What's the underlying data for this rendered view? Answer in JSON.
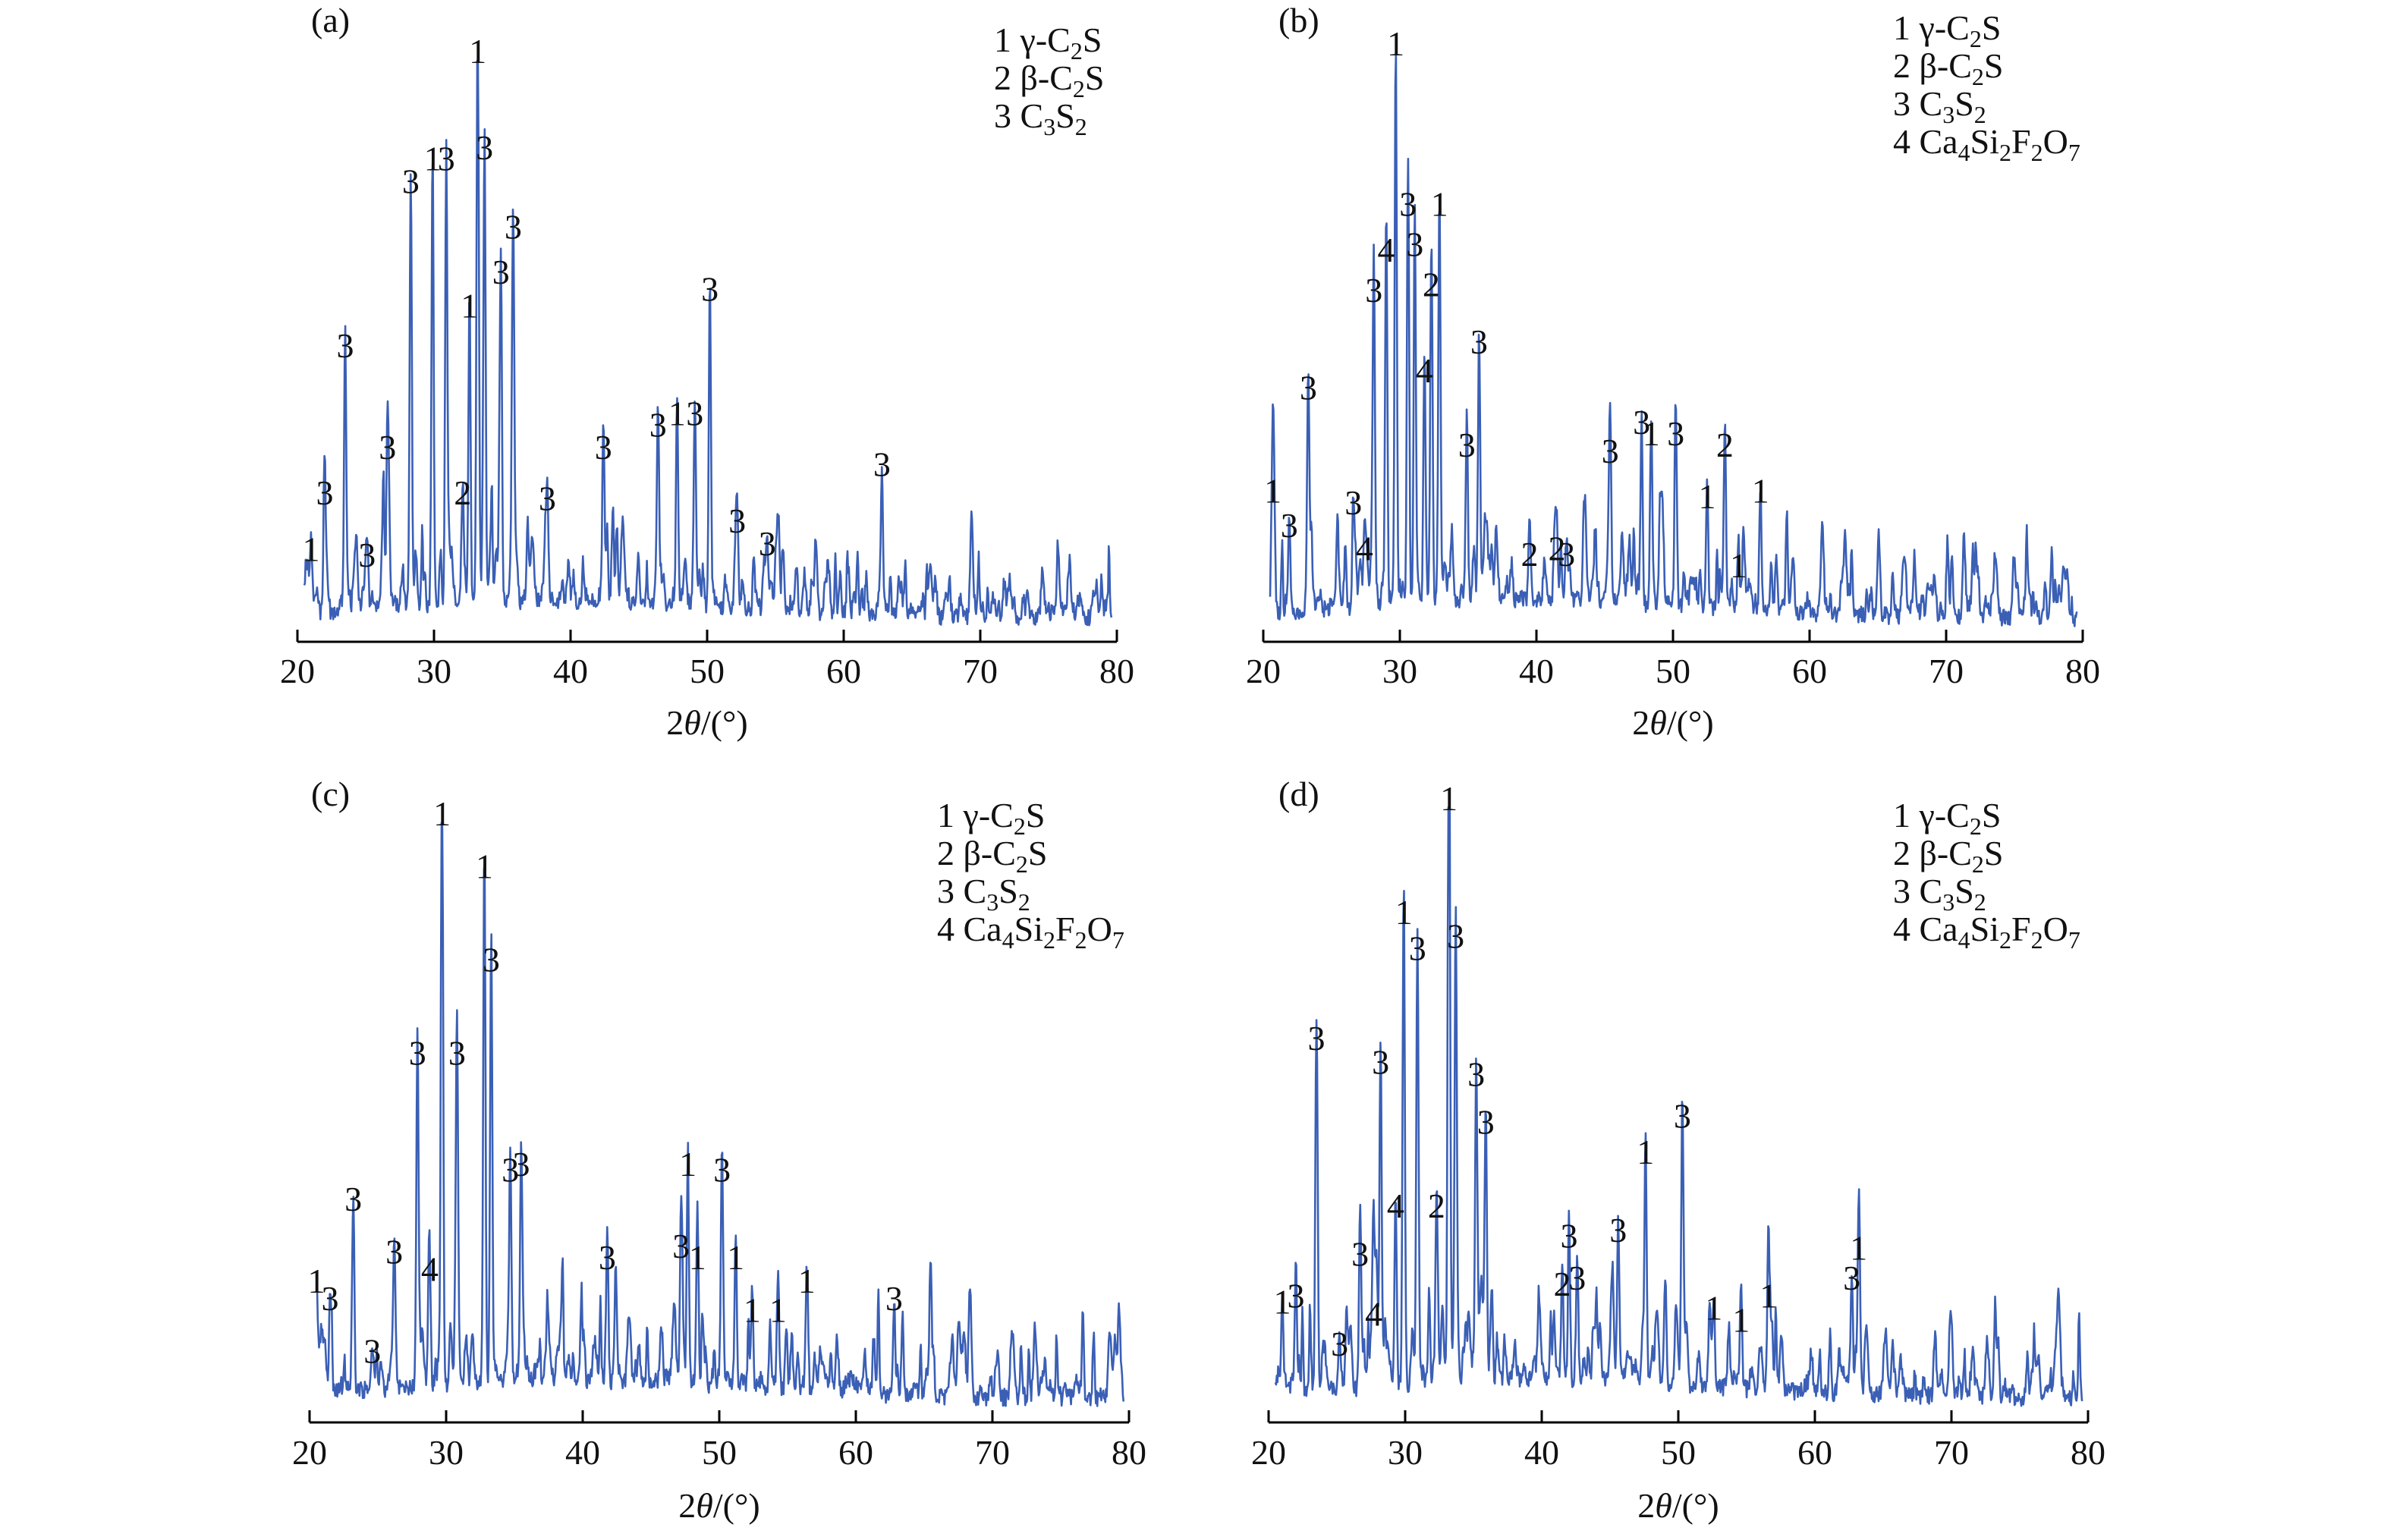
{
  "figure": {
    "trace_color": "#3a5fb5",
    "xlabel_main": "2",
    "xlabel_theta": "θ",
    "xlabel_unit": "/(°)",
    "legend": {
      "phases": [
        {
          "num": "1",
          "prefix": "γ-C",
          "sub": "2",
          "suffix": "S"
        },
        {
          "num": "2",
          "prefix": "β-C",
          "sub": "2",
          "suffix": "S"
        },
        {
          "num": "3",
          "prefix": "C",
          "sub": "3",
          "suffix": "S",
          "sub2": "2"
        },
        {
          "num": "4",
          "prefix": "Ca",
          "sub": "4",
          "suffix": "Si",
          "sub2": "2",
          "suffix2": "F",
          "sub3": "2",
          "suffix3": "O",
          "sub4": "7"
        }
      ]
    }
  },
  "chart_data": [
    {
      "type": "line",
      "panel": "(a)",
      "xlabel": "2θ/(°)",
      "ylabel": "",
      "xlim": [
        20,
        80
      ],
      "ticks": [
        20,
        30,
        40,
        50,
        60,
        70,
        80
      ],
      "legend_items": 3,
      "peaks": [
        {
          "x": 21.0,
          "y": 0.12,
          "label": "1"
        },
        {
          "x": 22.0,
          "y": 0.22,
          "label": "3"
        },
        {
          "x": 23.5,
          "y": 0.48,
          "label": "3"
        },
        {
          "x": 25.1,
          "y": 0.11,
          "label": "3"
        },
        {
          "x": 26.6,
          "y": 0.3,
          "label": "3"
        },
        {
          "x": 28.3,
          "y": 0.77,
          "label": "3"
        },
        {
          "x": 29.9,
          "y": 0.81,
          "label": "1"
        },
        {
          "x": 30.9,
          "y": 0.81,
          "label": "3"
        },
        {
          "x": 32.1,
          "y": 0.22,
          "label": "2"
        },
        {
          "x": 32.6,
          "y": 0.55,
          "label": "1"
        },
        {
          "x": 33.2,
          "y": 1.0,
          "label": "1"
        },
        {
          "x": 33.7,
          "y": 0.83,
          "label": "3"
        },
        {
          "x": 34.9,
          "y": 0.61,
          "label": "3"
        },
        {
          "x": 35.8,
          "y": 0.69,
          "label": "3"
        },
        {
          "x": 38.3,
          "y": 0.21,
          "label": "3"
        },
        {
          "x": 42.4,
          "y": 0.3,
          "label": "3"
        },
        {
          "x": 46.4,
          "y": 0.34,
          "label": "3"
        },
        {
          "x": 47.8,
          "y": 0.36,
          "label": "1"
        },
        {
          "x": 49.1,
          "y": 0.36,
          "label": "3"
        },
        {
          "x": 50.2,
          "y": 0.58,
          "label": "3"
        },
        {
          "x": 52.2,
          "y": 0.17,
          "label": "3"
        },
        {
          "x": 54.4,
          "y": 0.13,
          "label": "3"
        },
        {
          "x": 62.8,
          "y": 0.27,
          "label": "3"
        }
      ]
    },
    {
      "type": "line",
      "panel": "(b)",
      "xlabel": "2θ/(°)",
      "ylabel": "",
      "xlim": [
        20,
        80
      ],
      "ticks": [
        20,
        30,
        40,
        50,
        60,
        70,
        80
      ],
      "legend_items": 4,
      "peaks": [
        {
          "x": 20.7,
          "y": 0.22,
          "label": "1"
        },
        {
          "x": 21.9,
          "y": 0.16,
          "label": "3"
        },
        {
          "x": 23.3,
          "y": 0.4,
          "label": "3"
        },
        {
          "x": 26.6,
          "y": 0.2,
          "label": "3"
        },
        {
          "x": 27.4,
          "y": 0.12,
          "label": "4"
        },
        {
          "x": 28.1,
          "y": 0.57,
          "label": "3"
        },
        {
          "x": 29.0,
          "y": 0.64,
          "label": "4"
        },
        {
          "x": 29.7,
          "y": 1.0,
          "label": "1"
        },
        {
          "x": 30.6,
          "y": 0.72,
          "label": "3"
        },
        {
          "x": 31.1,
          "y": 0.65,
          "label": "3"
        },
        {
          "x": 31.8,
          "y": 0.43,
          "label": "4"
        },
        {
          "x": 32.3,
          "y": 0.58,
          "label": "2"
        },
        {
          "x": 32.9,
          "y": 0.72,
          "label": "1"
        },
        {
          "x": 34.9,
          "y": 0.3,
          "label": "3"
        },
        {
          "x": 35.8,
          "y": 0.48,
          "label": "3"
        },
        {
          "x": 39.5,
          "y": 0.11,
          "label": "2"
        },
        {
          "x": 41.5,
          "y": 0.12,
          "label": "2"
        },
        {
          "x": 42.2,
          "y": 0.11,
          "label": "3"
        },
        {
          "x": 45.4,
          "y": 0.29,
          "label": "3"
        },
        {
          "x": 47.7,
          "y": 0.34,
          "label": "3"
        },
        {
          "x": 48.4,
          "y": 0.32,
          "label": "1"
        },
        {
          "x": 50.2,
          "y": 0.32,
          "label": "3"
        },
        {
          "x": 52.5,
          "y": 0.21,
          "label": "1"
        },
        {
          "x": 53.8,
          "y": 0.3,
          "label": "2"
        },
        {
          "x": 54.8,
          "y": 0.09,
          "label": "1"
        },
        {
          "x": 56.4,
          "y": 0.22,
          "label": "1"
        }
      ]
    },
    {
      "type": "line",
      "panel": "(c)",
      "xlabel": "2θ/(°)",
      "ylabel": "",
      "xlim": [
        20,
        80
      ],
      "ticks": [
        20,
        30,
        40,
        50,
        60,
        70,
        80
      ],
      "legend_items": 4,
      "peaks": [
        {
          "x": 20.5,
          "y": 0.2,
          "label": "1"
        },
        {
          "x": 21.5,
          "y": 0.17,
          "label": "3"
        },
        {
          "x": 23.2,
          "y": 0.34,
          "label": "3"
        },
        {
          "x": 24.6,
          "y": 0.08,
          "label": "3"
        },
        {
          "x": 26.2,
          "y": 0.25,
          "label": "3"
        },
        {
          "x": 27.9,
          "y": 0.59,
          "label": "3"
        },
        {
          "x": 28.8,
          "y": 0.22,
          "label": "4"
        },
        {
          "x": 29.7,
          "y": 1.0,
          "label": "1"
        },
        {
          "x": 30.8,
          "y": 0.59,
          "label": "3"
        },
        {
          "x": 32.8,
          "y": 0.91,
          "label": "1"
        },
        {
          "x": 33.3,
          "y": 0.75,
          "label": "3"
        },
        {
          "x": 34.7,
          "y": 0.39,
          "label": "3"
        },
        {
          "x": 35.5,
          "y": 0.4,
          "label": "3"
        },
        {
          "x": 41.8,
          "y": 0.24,
          "label": "3"
        },
        {
          "x": 47.2,
          "y": 0.26,
          "label": "3"
        },
        {
          "x": 47.7,
          "y": 0.4,
          "label": "1"
        },
        {
          "x": 48.4,
          "y": 0.24,
          "label": "1"
        },
        {
          "x": 50.2,
          "y": 0.39,
          "label": "3"
        },
        {
          "x": 51.2,
          "y": 0.24,
          "label": "1"
        },
        {
          "x": 52.4,
          "y": 0.15,
          "label": "1"
        },
        {
          "x": 54.3,
          "y": 0.15,
          "label": "1"
        },
        {
          "x": 56.4,
          "y": 0.2,
          "label": "1"
        },
        {
          "x": 62.8,
          "y": 0.17,
          "label": "3"
        }
      ]
    },
    {
      "type": "line",
      "panel": "(d)",
      "xlabel": "2θ/(°)",
      "ylabel": "",
      "xlim": [
        20,
        80
      ],
      "ticks": [
        20,
        30,
        40,
        50,
        60,
        70,
        80
      ],
      "legend_items": 4,
      "peaks": [
        {
          "x": 21.0,
          "y": 0.16,
          "label": "1"
        },
        {
          "x": 22.0,
          "y": 0.17,
          "label": "3"
        },
        {
          "x": 23.5,
          "y": 0.6,
          "label": "3"
        },
        {
          "x": 25.2,
          "y": 0.09,
          "label": "3"
        },
        {
          "x": 26.7,
          "y": 0.24,
          "label": "3"
        },
        {
          "x": 27.7,
          "y": 0.14,
          "label": "4"
        },
        {
          "x": 28.2,
          "y": 0.56,
          "label": "3"
        },
        {
          "x": 29.3,
          "y": 0.32,
          "label": "4"
        },
        {
          "x": 29.9,
          "y": 0.81,
          "label": "1"
        },
        {
          "x": 30.9,
          "y": 0.75,
          "label": "3"
        },
        {
          "x": 32.3,
          "y": 0.32,
          "label": "2"
        },
        {
          "x": 33.2,
          "y": 1.0,
          "label": "1"
        },
        {
          "x": 33.7,
          "y": 0.77,
          "label": "3"
        },
        {
          "x": 35.2,
          "y": 0.54,
          "label": "3"
        },
        {
          "x": 35.9,
          "y": 0.46,
          "label": "3"
        },
        {
          "x": 41.5,
          "y": 0.19,
          "label": "2"
        },
        {
          "x": 42.0,
          "y": 0.27,
          "label": "3"
        },
        {
          "x": 42.6,
          "y": 0.2,
          "label": "3"
        },
        {
          "x": 45.6,
          "y": 0.28,
          "label": "3"
        },
        {
          "x": 47.6,
          "y": 0.41,
          "label": "1"
        },
        {
          "x": 50.3,
          "y": 0.47,
          "label": "3"
        },
        {
          "x": 52.6,
          "y": 0.15,
          "label": "1"
        },
        {
          "x": 54.6,
          "y": 0.13,
          "label": "1"
        },
        {
          "x": 56.6,
          "y": 0.17,
          "label": "1"
        },
        {
          "x": 62.7,
          "y": 0.2,
          "label": "3"
        },
        {
          "x": 63.2,
          "y": 0.25,
          "label": "1"
        }
      ]
    }
  ]
}
